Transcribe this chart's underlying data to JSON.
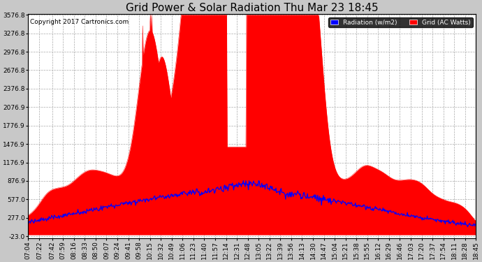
{
  "title": "Grid Power & Solar Radiation Thu Mar 23 18:45",
  "copyright": "Copyright 2017 Cartronics.com",
  "legend_radiation": "Radiation (w/m2)",
  "legend_grid": "Grid (AC Watts)",
  "yticks": [
    -23.0,
    277.0,
    577.0,
    876.9,
    1176.9,
    1476.9,
    1776.9,
    2076.9,
    2376.8,
    2676.8,
    2976.8,
    3276.8,
    3576.8
  ],
  "ymin": -23.0,
  "ymax": 3576.8,
  "background_color": "#c8c8c8",
  "plot_bg_color": "#ffffff",
  "grid_color": "#aaaaaa",
  "red_color": "#ff0000",
  "blue_color": "#0000ff",
  "title_fontsize": 11,
  "tick_fontsize": 6.5,
  "xtick_labels": [
    "07:04",
    "07:22",
    "07:42",
    "07:59",
    "08:16",
    "08:33",
    "08:50",
    "09:07",
    "09:24",
    "09:41",
    "09:58",
    "10:15",
    "10:32",
    "10:49",
    "11:06",
    "11:23",
    "11:40",
    "11:57",
    "12:14",
    "12:31",
    "12:48",
    "13:05",
    "13:22",
    "13:39",
    "13:56",
    "14:13",
    "14:30",
    "14:47",
    "15:04",
    "15:21",
    "15:38",
    "15:55",
    "16:12",
    "16:29",
    "16:46",
    "17:03",
    "17:20",
    "17:37",
    "17:54",
    "18:11",
    "18:28",
    "18:45"
  ]
}
